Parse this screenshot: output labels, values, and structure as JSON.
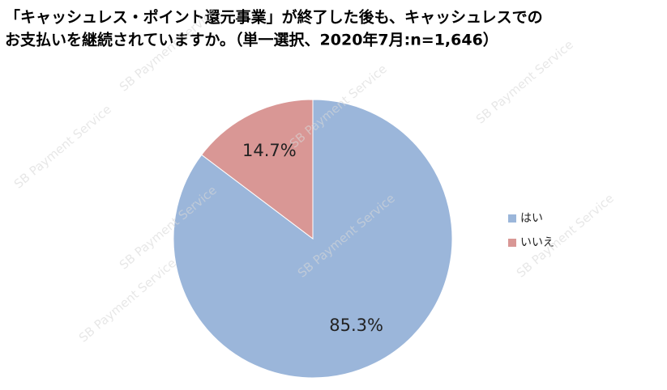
{
  "chart_data": {
    "type": "pie",
    "title": [
      "「キャッシュレス・ポイント還元事業」が終了した後も、キャッシュレスでの",
      "お支払いを継続されていますか。（単一選択、2020年7月:n=1,646）"
    ],
    "watermark": "SB Payment Service",
    "categories": [
      "はい",
      "いいえ"
    ],
    "values": [
      85.3,
      14.7
    ],
    "value_labels": [
      "85.3%",
      "14.7%"
    ],
    "colors": [
      "#9bb6da",
      "#d99795"
    ],
    "legend": "right"
  }
}
